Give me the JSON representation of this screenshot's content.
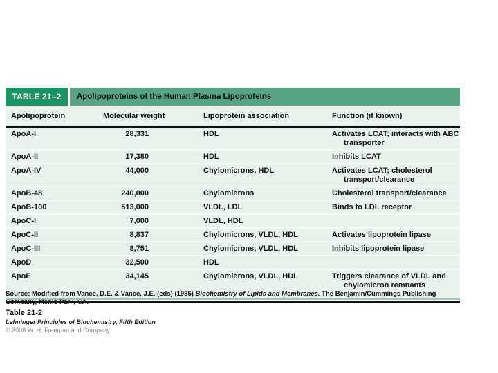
{
  "table": {
    "label": "TABLE 21–2",
    "title": "Apolipoproteins of the Human Plasma Lipoproteins",
    "columns": [
      "Apolipoprotein",
      "Molecular weight",
      "Lipoprotein association",
      "Function (if known)"
    ],
    "rows": [
      {
        "apolipoprotein": "ApoA-I",
        "molecular_weight": "28,331",
        "association": "HDL",
        "function": "Activates LCAT; interacts with ABC transporter"
      },
      {
        "apolipoprotein": "ApoA-II",
        "molecular_weight": "17,380",
        "association": "HDL",
        "function": "Inhibits LCAT"
      },
      {
        "apolipoprotein": "ApoA-IV",
        "molecular_weight": "44,000",
        "association": "Chylomicrons, HDL",
        "function": "Activates LCAT; cholesterol transport/clearance"
      },
      {
        "apolipoprotein": "ApoB-48",
        "molecular_weight": "240,000",
        "association": "Chylomicrons",
        "function": "Cholesterol transport/clearance"
      },
      {
        "apolipoprotein": "ApoB-100",
        "molecular_weight": "513,000",
        "association": "VLDL, LDL",
        "function": "Binds to LDL receptor"
      },
      {
        "apolipoprotein": "ApoC-I",
        "molecular_weight": "7,000",
        "association": "VLDL, HDL",
        "function": ""
      },
      {
        "apolipoprotein": "ApoC-II",
        "molecular_weight": "8,837",
        "association": "Chylomicrons, VLDL, HDL",
        "function": "Activates lipoprotein lipase"
      },
      {
        "apolipoprotein": "ApoC-III",
        "molecular_weight": "8,751",
        "association": "Chylomicrons, VLDL, HDL",
        "function": "Inhibits lipoprotein lipase"
      },
      {
        "apolipoprotein": "ApoD",
        "molecular_weight": "32,500",
        "association": "HDL",
        "function": ""
      },
      {
        "apolipoprotein": "ApoE",
        "molecular_weight": "34,145",
        "association": "Chylomicrons, VLDL, HDL",
        "function": "Triggers clearance of VLDL and chylomicron remnants"
      }
    ]
  },
  "source_note": {
    "label": "Source:",
    "text_before_book": " Modified from Vance, D.E. & Vance, J.E. (eds) (1985) ",
    "book_title": "Biochemistry of Lipids and Membranes.",
    "text_after_book": " The Benjamin/Cummings Publishing Company, Menlo Park, CA."
  },
  "caption": {
    "table_number": "Table 21-2",
    "edition": "Lehninger Principles of Biochemistry, Fifth Edition",
    "copyright": "© 2008 W. H. Freeman and Company"
  },
  "colors": {
    "label_box_green": "#1b9364",
    "band_green": "#57a383",
    "table_background": "#e8f1eb",
    "bottom_green_rule": "#9fc7b3",
    "heavy_rule_black": "#111111"
  }
}
